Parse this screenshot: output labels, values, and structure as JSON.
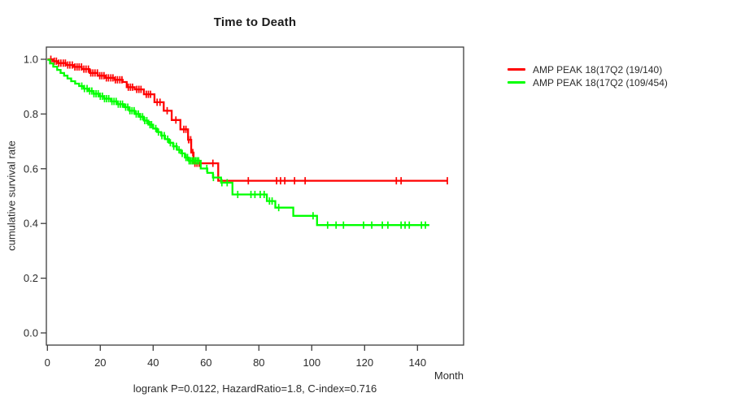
{
  "chart_data": {
    "type": "line",
    "subtype": "kaplan-meier-step-curve",
    "title": "Time to Death",
    "xlabel": "Month",
    "ylabel": "cumulative survival rate",
    "annotation": "logrank P=0.0122, HazardRatio=1.8, C-index=0.716",
    "x_ticks": [
      0,
      20,
      40,
      60,
      80,
      100,
      120,
      140
    ],
    "y_ticks": [
      "0.0",
      "0.2",
      "0.4",
      "0.6",
      "0.8",
      "1.0"
    ],
    "xlim": [
      0,
      157
    ],
    "ylim": [
      0,
      1
    ],
    "grid": false,
    "legend_position": "right",
    "legend": [
      {
        "label": "AMP PEAK 18(17Q2 (19/140)",
        "color": "#ff0000"
      },
      {
        "label": "AMP PEAK 18(17Q2 (109/454)",
        "color": "#00ff00"
      }
    ],
    "series": [
      {
        "name": "AMP PEAK 18(17Q2 (19/140)",
        "color": "#ff0000",
        "end_x": 151.3,
        "final_value": 0.556,
        "steps": [
          [
            0,
            1.0
          ],
          [
            2,
            0.993
          ],
          [
            4,
            0.986
          ],
          [
            7,
            0.979
          ],
          [
            10,
            0.972
          ],
          [
            13,
            0.964
          ],
          [
            16,
            0.95
          ],
          [
            19,
            0.94
          ],
          [
            22,
            0.932
          ],
          [
            25.5,
            0.925
          ],
          [
            28.5,
            0.917
          ],
          [
            30,
            0.898
          ],
          [
            33,
            0.89
          ],
          [
            36.5,
            0.872
          ],
          [
            40.5,
            0.843
          ],
          [
            44,
            0.812
          ],
          [
            47,
            0.778
          ],
          [
            50.3,
            0.744
          ],
          [
            53.2,
            0.706
          ],
          [
            54.4,
            0.659
          ],
          [
            55.3,
            0.62
          ],
          [
            64.6,
            0.556
          ]
        ],
        "censor_x": [
          1.3,
          2.6,
          3.4,
          4.3,
          5.1,
          6,
          6.8,
          7.7,
          8.5,
          9.4,
          10.4,
          11.2,
          12,
          12.9,
          13.8,
          14.6,
          15.5,
          16.4,
          17.2,
          18,
          18.9,
          19.8,
          20.6,
          21.4,
          22.3,
          23.1,
          24,
          24.8,
          25.7,
          26.5,
          27.4,
          28.2,
          30.6,
          31.4,
          32.2,
          33.8,
          34.6,
          35.4,
          37.4,
          38.2,
          39,
          41.5,
          42.6,
          45.3,
          48.6,
          51.6,
          52.4,
          53.4,
          54.2,
          55,
          55.8,
          56.6,
          57.4,
          62.6,
          76,
          86.7,
          88.2,
          89.8,
          93.5,
          97.5,
          132,
          133.8,
          151.3
        ]
      },
      {
        "name": "AMP PEAK 18(17Q2 (109/454)",
        "color": "#00ff00",
        "end_x": 144.5,
        "final_value": 0.394,
        "steps": [
          [
            0,
            0.998
          ],
          [
            1,
            0.985
          ],
          [
            2.2,
            0.973
          ],
          [
            3.7,
            0.961
          ],
          [
            5,
            0.95
          ],
          [
            6.3,
            0.94
          ],
          [
            7.6,
            0.93
          ],
          [
            9,
            0.92
          ],
          [
            10.5,
            0.911
          ],
          [
            12,
            0.902
          ],
          [
            13.7,
            0.893
          ],
          [
            15.4,
            0.884
          ],
          [
            17.5,
            0.874
          ],
          [
            19.5,
            0.865
          ],
          [
            21.5,
            0.856
          ],
          [
            24,
            0.846
          ],
          [
            26.5,
            0.836
          ],
          [
            29,
            0.825
          ],
          [
            31,
            0.812
          ],
          [
            33,
            0.8
          ],
          [
            35,
            0.79
          ],
          [
            36.5,
            0.776
          ],
          [
            38.2,
            0.761
          ],
          [
            40,
            0.747
          ],
          [
            41.5,
            0.734
          ],
          [
            43,
            0.721
          ],
          [
            44.5,
            0.708
          ],
          [
            46,
            0.695
          ],
          [
            47.5,
            0.682
          ],
          [
            49,
            0.669
          ],
          [
            50.5,
            0.656
          ],
          [
            52,
            0.641
          ],
          [
            53.5,
            0.629
          ],
          [
            58,
            0.601
          ],
          [
            60.5,
            0.585
          ],
          [
            62.6,
            0.568
          ],
          [
            65.7,
            0.549
          ],
          [
            70,
            0.506
          ],
          [
            83,
            0.482
          ],
          [
            86.2,
            0.458
          ],
          [
            93,
            0.428
          ],
          [
            102,
            0.394
          ]
        ],
        "censor_x": [
          13,
          14,
          15,
          16,
          16.8,
          17.6,
          18.4,
          19.2,
          20,
          20.8,
          21.6,
          22.4,
          23.2,
          24.4,
          25.2,
          26,
          26.8,
          27.6,
          28.4,
          29.6,
          30.4,
          31.2,
          32,
          32.8,
          33.6,
          34.4,
          35.2,
          36,
          36.8,
          37.6,
          38.8,
          39.4,
          41,
          42,
          43.3,
          44.2,
          45.5,
          46.5,
          47.8,
          48.8,
          49.8,
          51,
          52.4,
          53,
          53.6,
          54.2,
          54.8,
          55.4,
          56,
          56.6,
          57.2,
          60.3,
          62.8,
          66,
          68,
          72,
          77,
          78.5,
          80.5,
          82,
          84,
          85,
          87.5,
          100.5,
          106,
          109.2,
          112,
          119.6,
          122.7,
          126.7,
          128.8,
          133.8,
          135.3,
          136.9,
          141.5,
          143
        ]
      }
    ]
  }
}
